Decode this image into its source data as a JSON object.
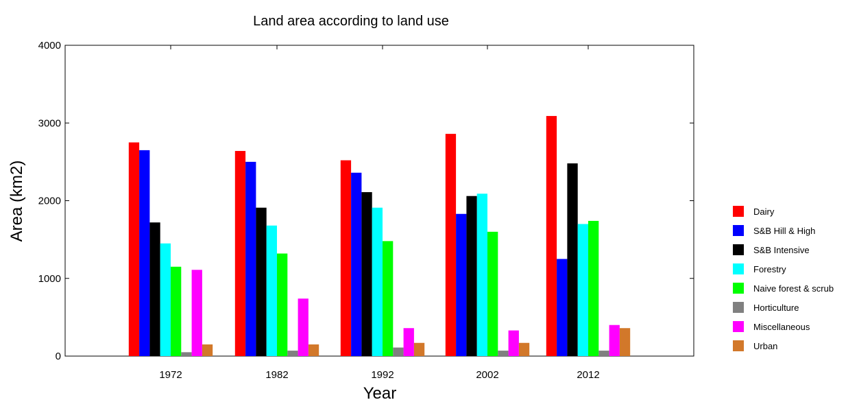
{
  "chart_data": {
    "type": "bar",
    "title": "Land area according to land use",
    "xlabel": "Year",
    "ylabel": "Area (km2)",
    "categories": [
      "1972",
      "1982",
      "1992",
      "2002",
      "2012"
    ],
    "ylim": [
      0,
      4000
    ],
    "yticks": [
      0,
      1000,
      2000,
      3000,
      4000
    ],
    "grid": false,
    "legend_position": "right",
    "series": [
      {
        "name": "Dairy",
        "color": "#ff0000",
        "values": [
          2750,
          2640,
          2520,
          2860,
          3090
        ]
      },
      {
        "name": "S&B Hill & High",
        "color": "#0000ff",
        "values": [
          2650,
          2500,
          2360,
          1830,
          1250
        ]
      },
      {
        "name": "S&B Intensive",
        "color": "#000000",
        "values": [
          1720,
          1910,
          2110,
          2060,
          2480
        ]
      },
      {
        "name": "Forestry",
        "color": "#00ffff",
        "values": [
          1450,
          1680,
          1910,
          2090,
          1700
        ]
      },
      {
        "name": "Naive forest & scrub",
        "color": "#00ff00",
        "values": [
          1150,
          1320,
          1480,
          1600,
          1740
        ]
      },
      {
        "name": "Horticulture",
        "color": "#808080",
        "values": [
          50,
          70,
          110,
          70,
          70
        ]
      },
      {
        "name": "Miscellaneous",
        "color": "#ff00ff",
        "values": [
          1110,
          740,
          360,
          330,
          400
        ]
      },
      {
        "name": "Urban",
        "color": "#d2782a",
        "values": [
          150,
          150,
          170,
          170,
          360
        ]
      }
    ]
  }
}
